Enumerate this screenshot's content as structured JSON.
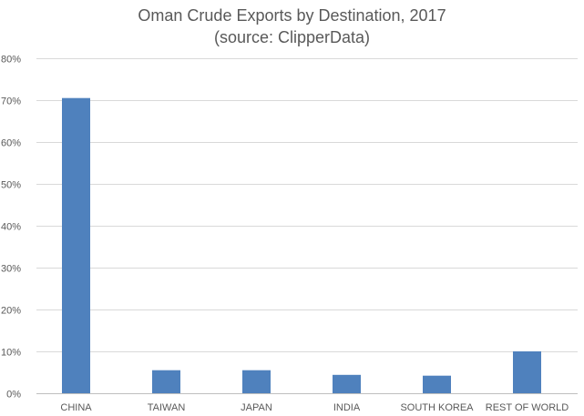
{
  "chart_data": {
    "type": "bar",
    "title": "Oman Crude Exports by Destination, 2017",
    "subtitle": "(source: ClipperData)",
    "categories": [
      "CHINA",
      "TAIWAN",
      "JAPAN",
      "INDIA",
      "SOUTH KOREA",
      "REST OF WORLD"
    ],
    "values": [
      70.5,
      5.5,
      5.5,
      4.4,
      4.2,
      10.0
    ],
    "ylim": [
      0,
      80
    ],
    "yticks": [
      0,
      10,
      20,
      30,
      40,
      50,
      60,
      70,
      80
    ],
    "ytick_labels": [
      "0%",
      "10%",
      "20%",
      "30%",
      "40%",
      "50%",
      "60%",
      "70%",
      "80%"
    ],
    "grid": true,
    "bar_color": "#4f81bd"
  }
}
